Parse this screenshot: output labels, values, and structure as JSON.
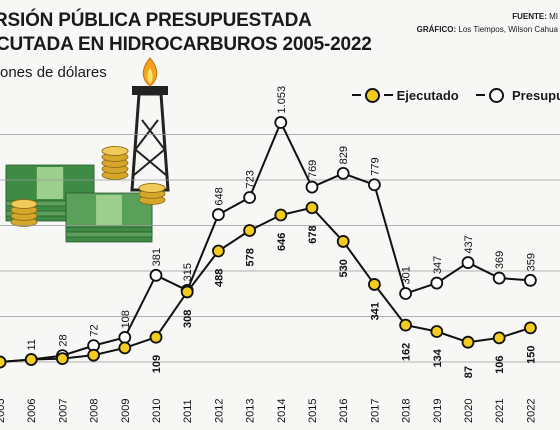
{
  "header": {
    "title_line1": "RSIÓN PÚBLICA PRESUPUESTADA",
    "title_line2": "CUTADA EN HIDROCARBUROS 2005-2022",
    "source_label": "FUENTE:",
    "source_value": "MI",
    "graphic_label": "GRÁFICO:",
    "graphic_value": "Los Tiempos, Wilson Cahua"
  },
  "chart_data": {
    "type": "line",
    "title": "",
    "ylabel": "ones de dólares",
    "xlabel": "",
    "x": [
      "2005",
      "2006",
      "2007",
      "2008",
      "2009",
      "2010",
      "2011",
      "2012",
      "2013",
      "2014",
      "2015",
      "2016",
      "2017",
      "2018",
      "2019",
      "2020",
      "2021",
      "2022"
    ],
    "series": [
      {
        "name": "Ejecutado",
        "color": "#f2cc1f",
        "values": [
          0,
          11,
          15,
          30,
          62,
          109,
          308,
          488,
          578,
          646,
          678,
          530,
          341,
          162,
          134,
          87,
          106,
          150
        ],
        "labels": [
          "",
          "",
          "",
          "",
          "",
          "109",
          "308",
          "488",
          "578",
          "646",
          "678",
          "530",
          "341",
          "162",
          "134",
          "87",
          "106",
          "150"
        ]
      },
      {
        "name": "Presupue",
        "color": "#ffffff",
        "values": [
          0,
          11,
          28,
          72,
          108,
          381,
          315,
          648,
          723,
          1053,
          769,
          829,
          779,
          301,
          347,
          437,
          369,
          359
        ],
        "labels": [
          "",
          "11",
          "28",
          "72",
          "108",
          "381",
          "315",
          "648",
          "723",
          "1.053",
          "769",
          "829",
          "779",
          "301",
          "347",
          "437",
          "369",
          "359"
        ]
      }
    ],
    "ylim": [
      0,
      1100
    ],
    "grid": true,
    "legend_position": "top-right"
  }
}
